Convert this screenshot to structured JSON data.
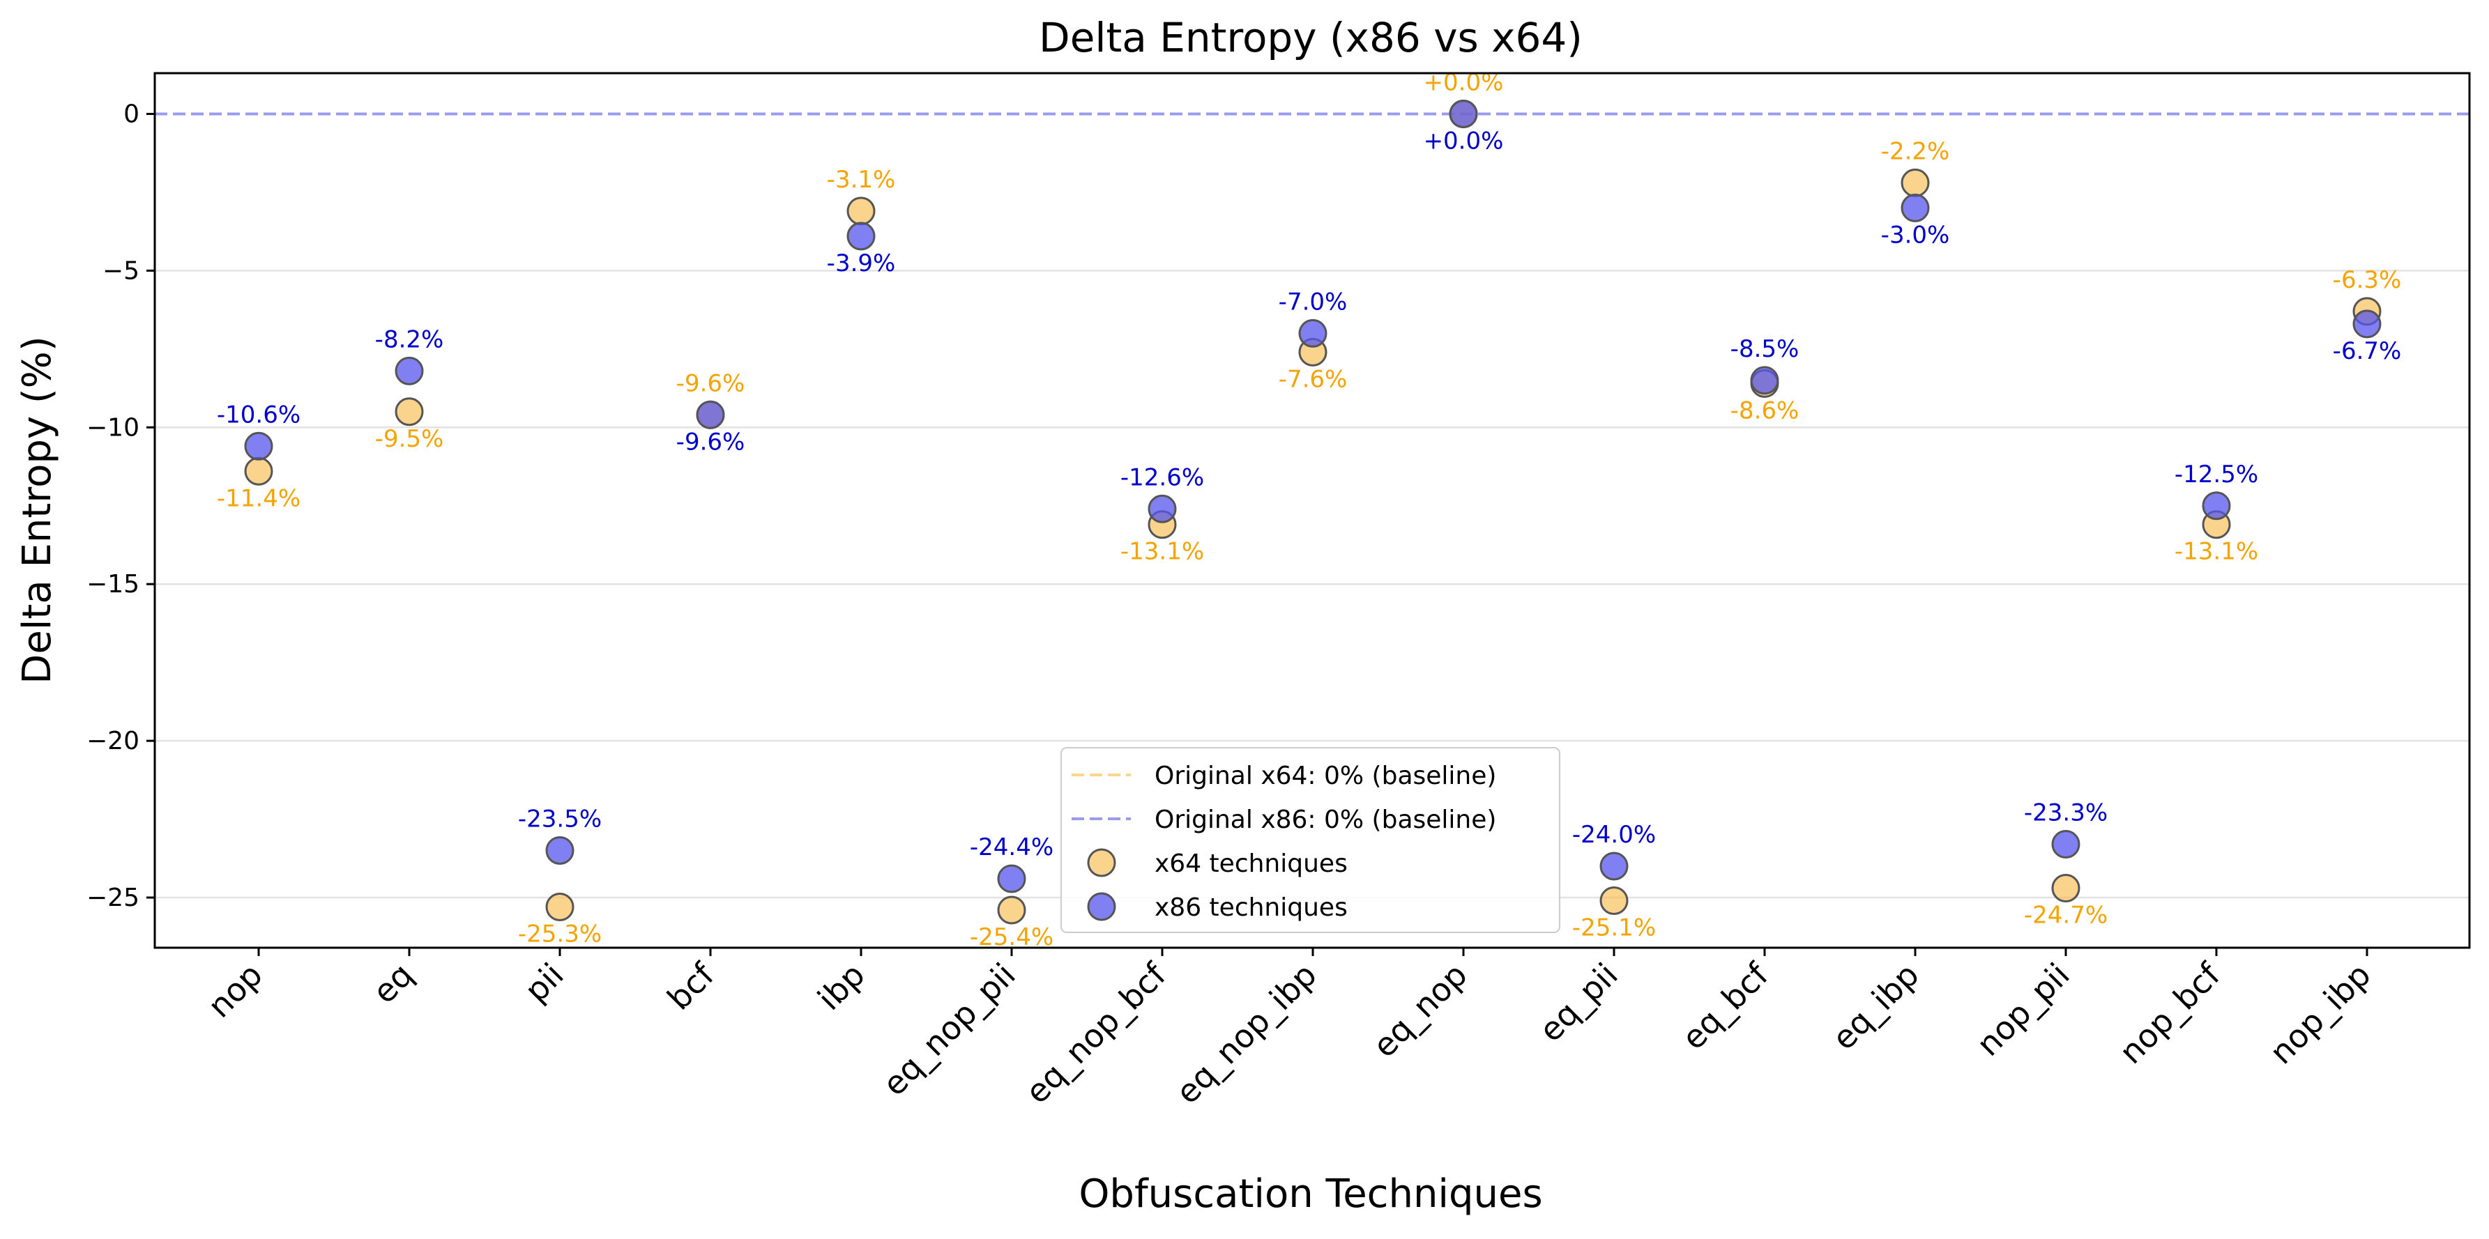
{
  "chart_data": {
    "type": "scatter",
    "title": "Delta Entropy (x86 vs x64)",
    "xlabel": "Obfuscation Techniques",
    "ylabel": "Delta Entropy (%)",
    "ylim": [
      -26.6,
      1.3
    ],
    "yticks": [
      0,
      -5,
      -10,
      -15,
      -20,
      -25
    ],
    "ytick_labels": [
      "0",
      "−5",
      "−10",
      "−15",
      "−20",
      "−25"
    ],
    "grid": "horizontal",
    "legend_position": "lower center",
    "categories": [
      "nop",
      "eq",
      "pii",
      "bcf",
      "ibp",
      "eq_nop_pii",
      "eq_nop_bcf",
      "eq_nop_ibp",
      "eq_nop",
      "eq_pii",
      "eq_bcf",
      "eq_ibp",
      "nop_pii",
      "nop_bcf",
      "nop_ibp"
    ],
    "baselines": [
      {
        "label": "Original x64: 0% (baseline)",
        "value": 0,
        "color": "#fbd58a"
      },
      {
        "label": "Original x86: 0% (baseline)",
        "value": 0,
        "color": "#9a9aee"
      }
    ],
    "series": [
      {
        "name": "x64 techniques",
        "color": "#f7bd4f",
        "text_color": "#f5a300",
        "values": [
          -11.4,
          -9.5,
          -25.3,
          -9.6,
          -3.1,
          -25.4,
          -13.1,
          -7.6,
          0.0,
          -25.1,
          -8.6,
          -2.2,
          -24.7,
          -13.1,
          -6.3
        ],
        "labels": [
          "-11.4%",
          "-9.5%",
          "-25.3%",
          "-9.6%",
          "-3.1%",
          "-25.4%",
          "-13.1%",
          "-7.6%",
          "+0.0%",
          "-25.1%",
          "-8.6%",
          "-2.2%",
          "-24.7%",
          "-13.1%",
          "-6.3%"
        ]
      },
      {
        "name": "x86 techniques",
        "color": "#5555ee",
        "text_color": "#0000cc",
        "values": [
          -10.6,
          -8.2,
          -23.5,
          -9.6,
          -3.9,
          -24.4,
          -12.6,
          -7.0,
          0.0,
          -24.0,
          -8.5,
          -3.0,
          -23.3,
          -12.5,
          -6.7
        ],
        "labels": [
          "-10.6%",
          "-8.2%",
          "-23.5%",
          "-9.6%",
          "-3.9%",
          "-24.4%",
          "-12.6%",
          "-7.0%",
          "+0.0%",
          "-24.0%",
          "-8.5%",
          "-3.0%",
          "-23.3%",
          "-12.5%",
          "-6.7%"
        ]
      }
    ]
  }
}
